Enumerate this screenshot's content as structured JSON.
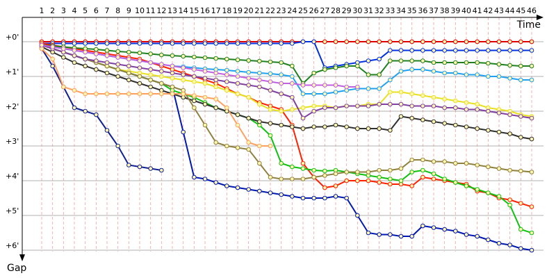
{
  "chart_data": {
    "type": "line",
    "x_label": "Time",
    "y_label": "Gap",
    "categories": [
      "1",
      "2",
      "3",
      "4",
      "5",
      "6",
      "7",
      "8",
      "9",
      "10",
      "11",
      "12",
      "13",
      "14",
      "15",
      "16",
      "17",
      "18",
      "19",
      "20",
      "21",
      "22",
      "23",
      "24",
      "25",
      "26",
      "27",
      "28",
      "29",
      "30",
      "31",
      "32",
      "33",
      "34",
      "35",
      "36",
      "37",
      "38",
      "39",
      "40",
      "41",
      "42",
      "43",
      "44",
      "45",
      "46"
    ],
    "ylim": [
      -0.7,
      6.3
    ],
    "y_inverted": true,
    "yticks": [
      {
        "value": 0,
        "label": "+0'"
      },
      {
        "value": 1,
        "label": "+1'"
      },
      {
        "value": 2,
        "label": "+2'"
      },
      {
        "value": 3,
        "label": "+3'"
      },
      {
        "value": 4,
        "label": "+4'"
      },
      {
        "value": 5,
        "label": "+5'"
      },
      {
        "value": 6,
        "label": "+6'"
      }
    ],
    "grid": true,
    "series": [
      {
        "color": "#e00000",
        "values": [
          0,
          0,
          0,
          0,
          0,
          0,
          0,
          0,
          0,
          0,
          0,
          0,
          0,
          0,
          0,
          0,
          0,
          0,
          0,
          0,
          0,
          0,
          0,
          0,
          0,
          0,
          0,
          0,
          0,
          0,
          0,
          0,
          0,
          0,
          0,
          0,
          0,
          0,
          0,
          0,
          0,
          0,
          0,
          0,
          0,
          0
        ]
      },
      {
        "color": "#0030e0",
        "values": [
          0.05,
          0.05,
          0.05,
          0.05,
          0.05,
          0.05,
          0.05,
          0.05,
          0.05,
          0.05,
          0.05,
          0.05,
          0.05,
          0.05,
          0.05,
          0.05,
          0.05,
          0.05,
          0.05,
          0.05,
          0.05,
          0.05,
          0.05,
          0.05,
          0,
          0,
          0.75,
          0.7,
          0.65,
          0.6,
          0.55,
          0.5,
          0.25,
          0.25,
          0.25,
          0.25,
          0.25,
          0.25,
          0.25,
          0.25,
          0.25,
          0.25,
          0.25,
          0.25,
          0.25,
          0.25
        ]
      },
      {
        "color": "#ff2000",
        "values": [
          0.05,
          0.1,
          0.15,
          0.2,
          0.25,
          0.3,
          0.35,
          0.4,
          0.45,
          0.5,
          0.6,
          0.7,
          0.8,
          0.9,
          1.0,
          1.1,
          1.2,
          1.35,
          1.5,
          1.6,
          1.75,
          1.85,
          1.95,
          2.4,
          3.5,
          3.9,
          4.2,
          4.15,
          4.0,
          4.0,
          4.0,
          4.05,
          4.1,
          4.1,
          4.15,
          3.9,
          3.95,
          4.0,
          4.05,
          4.1,
          4.3,
          4.35,
          4.5,
          4.55,
          4.65,
          4.75
        ]
      },
      {
        "color": "#0018b0",
        "values": [
          0.1,
          0.2,
          0.3,
          0.4,
          0.5,
          0.6,
          0.7,
          0.8,
          0.9,
          1.0,
          1.1,
          1.2,
          1.3,
          2.6,
          3.9,
          3.95,
          4.05,
          4.15,
          4.2,
          4.25,
          4.3,
          4.35,
          4.4,
          4.45,
          4.5,
          4.5,
          4.5,
          4.45,
          4.5,
          5.0,
          5.5,
          5.55,
          5.55,
          5.6,
          5.6,
          5.3,
          5.35,
          5.4,
          5.45,
          5.55,
          5.6,
          5.7,
          5.8,
          5.85,
          5.95,
          6.0
        ]
      },
      {
        "color": "#102090",
        "values": [
          0.2,
          0.7,
          1.3,
          1.9,
          2.0,
          2.1,
          2.55,
          3.0,
          3.55,
          3.6,
          3.65,
          3.7,
          null,
          null,
          null,
          null,
          null,
          null,
          null,
          null,
          null,
          null,
          null,
          null,
          null,
          null,
          null,
          null,
          null,
          null,
          null,
          null,
          null,
          null,
          null,
          null,
          null,
          null,
          null,
          null,
          null,
          null,
          null,
          null,
          null,
          null
        ]
      },
      {
        "color": "#10c010",
        "values": [
          0.1,
          0.2,
          0.3,
          0.4,
          0.5,
          0.6,
          0.7,
          0.8,
          0.9,
          1.0,
          1.1,
          1.2,
          1.4,
          1.5,
          1.6,
          1.75,
          1.9,
          2.0,
          2.1,
          2.2,
          2.4,
          2.7,
          3.5,
          3.6,
          3.65,
          3.7,
          3.72,
          3.7,
          3.75,
          3.8,
          3.85,
          3.9,
          3.95,
          4.0,
          3.75,
          3.7,
          3.8,
          3.95,
          4.05,
          4.15,
          4.25,
          4.35,
          4.45,
          4.7,
          5.4,
          5.5
        ]
      },
      {
        "color": "#e8e020",
        "values": [
          0.1,
          0.2,
          0.3,
          0.4,
          0.5,
          0.6,
          0.7,
          0.8,
          0.85,
          0.9,
          0.95,
          1.0,
          1.05,
          1.1,
          1.15,
          1.2,
          1.3,
          1.4,
          1.5,
          1.6,
          1.8,
          1.95,
          2.0,
          1.95,
          1.9,
          1.85,
          1.85,
          1.9,
          1.85,
          1.85,
          1.8,
          1.8,
          1.45,
          1.45,
          1.5,
          1.55,
          1.6,
          1.65,
          1.7,
          1.75,
          1.8,
          1.9,
          1.95,
          2.0,
          2.1,
          2.15
        ]
      },
      {
        "color": "#303030",
        "values": [
          0.15,
          0.3,
          0.45,
          0.6,
          0.7,
          0.8,
          0.9,
          1.0,
          1.1,
          1.2,
          1.3,
          1.4,
          1.5,
          1.6,
          1.7,
          1.8,
          1.9,
          2.0,
          2.1,
          2.2,
          2.3,
          2.35,
          2.4,
          2.45,
          2.5,
          2.45,
          2.45,
          2.4,
          2.45,
          2.5,
          2.5,
          2.5,
          2.55,
          2.15,
          2.2,
          2.25,
          2.3,
          2.35,
          2.4,
          2.45,
          2.5,
          2.55,
          2.6,
          2.65,
          2.75,
          2.8
        ]
      },
      {
        "color": "#908040",
        "values": [
          0.1,
          0.2,
          0.3,
          0.4,
          0.5,
          0.6,
          0.7,
          0.8,
          0.9,
          1.0,
          1.1,
          1.2,
          1.3,
          1.4,
          1.9,
          2.4,
          2.9,
          3.0,
          3.05,
          3.1,
          3.5,
          3.9,
          3.95,
          3.95,
          3.95,
          3.9,
          3.85,
          3.8,
          3.75,
          3.75,
          3.75,
          3.7,
          3.7,
          3.65,
          3.4,
          3.4,
          3.45,
          3.45,
          3.5,
          3.5,
          3.55,
          3.6,
          3.65,
          3.7,
          3.72,
          3.75
        ]
      },
      {
        "color": "#20a0f0",
        "values": [
          0.1,
          0.15,
          0.2,
          0.25,
          0.3,
          0.35,
          0.4,
          0.45,
          0.5,
          0.55,
          0.6,
          0.65,
          0.7,
          0.72,
          0.75,
          0.78,
          0.8,
          0.82,
          0.85,
          0.88,
          0.9,
          0.92,
          0.95,
          1.0,
          1.5,
          1.5,
          1.5,
          1.45,
          1.4,
          1.35,
          1.35,
          1.35,
          1.1,
          0.85,
          0.8,
          0.8,
          0.85,
          0.9,
          0.9,
          0.95,
          0.95,
          1.0,
          1.0,
          1.05,
          1.1,
          1.1
        ]
      },
      {
        "color": "#208020",
        "values": [
          0.1,
          0.12,
          0.15,
          0.18,
          0.2,
          0.22,
          0.25,
          0.28,
          0.3,
          0.32,
          0.35,
          0.38,
          0.4,
          0.42,
          0.44,
          0.46,
          0.48,
          0.5,
          0.52,
          0.54,
          0.56,
          0.58,
          0.6,
          0.7,
          1.2,
          0.9,
          0.8,
          0.75,
          0.7,
          0.7,
          0.95,
          0.95,
          0.55,
          0.55,
          0.55,
          0.55,
          0.6,
          0.6,
          0.6,
          0.6,
          0.6,
          0.62,
          0.65,
          0.68,
          0.7,
          0.7
        ]
      },
      {
        "color": "#8040a0",
        "values": [
          0.1,
          0.2,
          0.3,
          0.4,
          0.5,
          0.55,
          0.6,
          0.65,
          0.7,
          0.75,
          0.8,
          0.85,
          0.9,
          0.95,
          1.0,
          1.05,
          1.1,
          1.15,
          1.2,
          1.25,
          1.3,
          1.4,
          1.5,
          1.6,
          2.2,
          2.0,
          1.9,
          1.9,
          1.85,
          1.85,
          1.85,
          1.8,
          1.8,
          1.8,
          1.85,
          1.85,
          1.85,
          1.9,
          1.9,
          1.95,
          1.95,
          2.0,
          2.05,
          2.1,
          2.15,
          2.2
        ]
      },
      {
        "color": "#ffa060",
        "values": [
          0.2,
          0.5,
          1.3,
          1.4,
          1.5,
          1.5,
          1.5,
          1.5,
          1.5,
          1.5,
          1.5,
          1.5,
          1.5,
          1.5,
          1.55,
          1.6,
          1.65,
          1.9,
          2.4,
          2.9,
          3.0,
          3.0,
          null,
          null,
          null,
          null,
          null,
          null,
          null,
          null,
          null,
          null,
          null,
          null,
          null,
          null,
          null,
          null,
          null,
          null,
          null,
          null,
          null,
          null,
          null,
          null
        ]
      },
      {
        "color": "#c060e0",
        "values": [
          0.1,
          0.15,
          0.2,
          0.25,
          0.3,
          0.35,
          0.4,
          0.45,
          0.5,
          0.55,
          0.6,
          0.65,
          0.7,
          0.75,
          0.8,
          0.85,
          0.9,
          0.95,
          1.0,
          1.05,
          1.1,
          1.15,
          1.2,
          1.2,
          1.25,
          1.25,
          1.25,
          1.25,
          1.3,
          1.3,
          null,
          null,
          null,
          null,
          null,
          null,
          null,
          null,
          null,
          null,
          null,
          null,
          null,
          null,
          null,
          null
        ]
      }
    ]
  }
}
